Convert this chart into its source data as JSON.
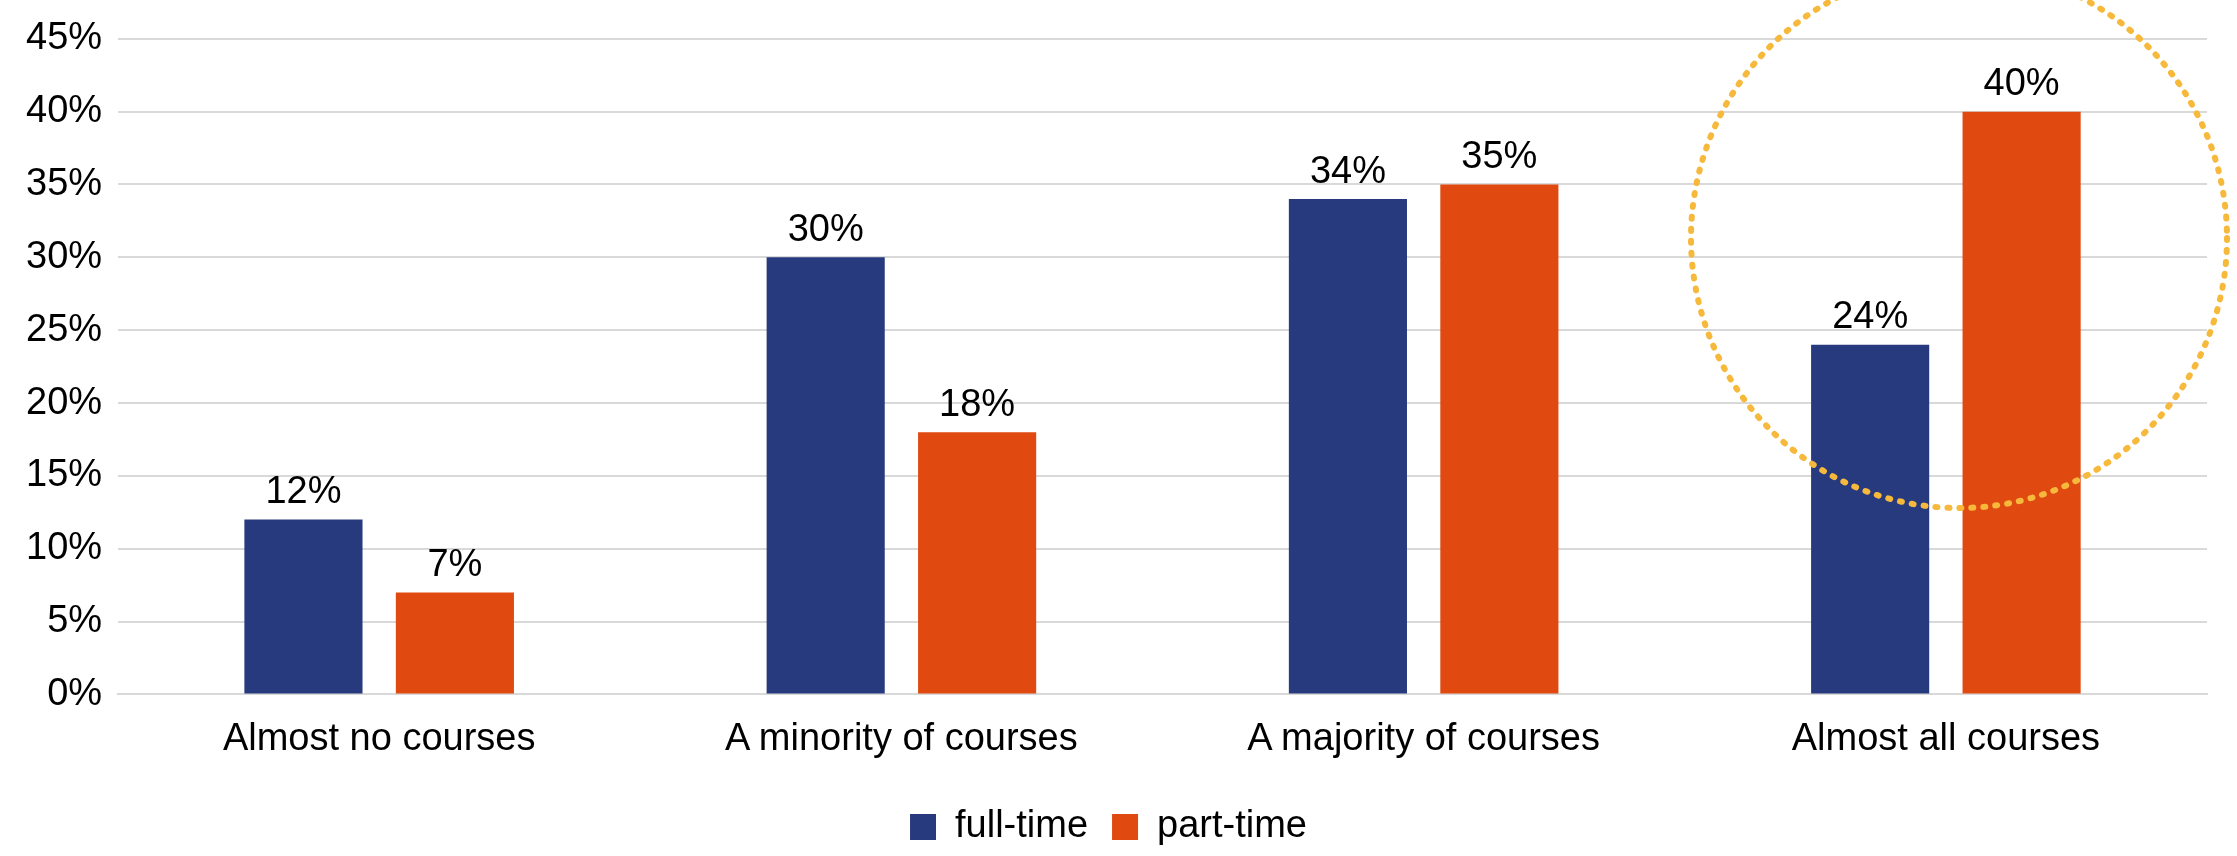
{
  "chart_data": {
    "type": "bar",
    "categories": [
      "Almost no courses",
      "A minority of courses",
      "A majority of courses",
      "Almost all courses"
    ],
    "series": [
      {
        "name": "full-time",
        "color": "#283a7e",
        "values": [
          12,
          30,
          34,
          24
        ]
      },
      {
        "name": "part-time",
        "color": "#e04a10",
        "values": [
          7,
          18,
          35,
          40
        ]
      }
    ],
    "ylim": [
      0,
      45
    ],
    "yticks": [
      {
        "value": 0,
        "label": "0%"
      },
      {
        "value": 5,
        "label": "5%"
      },
      {
        "value": 10,
        "label": "10%"
      },
      {
        "value": 15,
        "label": "15%"
      },
      {
        "value": 20,
        "label": "20%"
      },
      {
        "value": 25,
        "label": "25%"
      },
      {
        "value": 30,
        "label": "30%"
      },
      {
        "value": 35,
        "label": "35%"
      },
      {
        "value": 40,
        "label": "40%"
      },
      {
        "value": 45,
        "label": "45%"
      }
    ],
    "value_labels": [
      [
        "12%",
        "30%",
        "34%",
        "24%"
      ],
      [
        "7%",
        "18%",
        "35%",
        "40%"
      ]
    ],
    "grid": "y",
    "legend": "bottom"
  }
}
